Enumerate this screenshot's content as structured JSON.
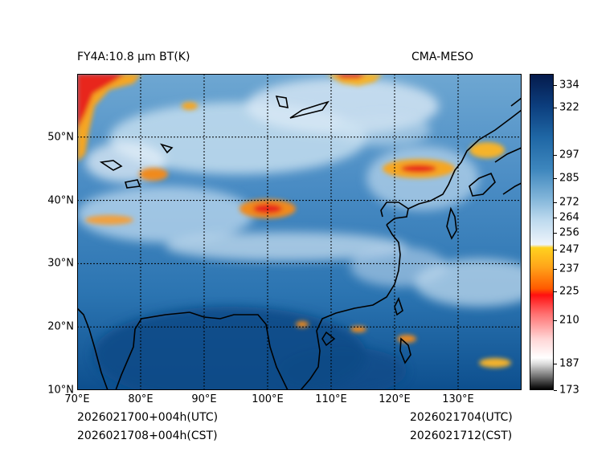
{
  "header": {
    "title_left": "FY4A:10.8 µm BT(K)",
    "title_right": "CMA-MESO"
  },
  "footer": {
    "init_utc": "2026021700+004h(UTC)",
    "init_cst": "2026021708+004h(CST)",
    "valid_utc": "2026021704(UTC)",
    "valid_cst": "2026021712(CST)"
  },
  "map": {
    "lon_min": 70,
    "lon_max": 140,
    "lat_min": 10,
    "lat_max": 60,
    "lon_ticks": [
      70,
      80,
      90,
      100,
      110,
      120,
      130
    ],
    "lon_tick_labels": [
      "70°E",
      "80°E",
      "90°E",
      "100°E",
      "110°E",
      "120°E",
      "130°E"
    ],
    "lat_ticks": [
      10,
      20,
      30,
      40,
      50
    ],
    "lat_tick_labels": [
      "10°N",
      "20°N",
      "30°N",
      "40°N",
      "50°N"
    ]
  },
  "colorbar": {
    "min": 173,
    "max": 340,
    "ticks": [
      173,
      187,
      210,
      225,
      237,
      247,
      256,
      264,
      272,
      285,
      297,
      322,
      334
    ],
    "tick_labels": [
      "173",
      "187",
      "210",
      "225",
      "237",
      "247",
      "256",
      "264",
      "272",
      "285",
      "297",
      "322",
      "334"
    ]
  },
  "colors": {
    "deep_ocean": "#0d4f8e",
    "mid_blue": "#2f79b5",
    "light_blue": "#a7cde6",
    "cloud_white": "#e8f1f8",
    "cold_orange": "#f08a1c",
    "cold_red": "#e8261a",
    "coast": "#000000",
    "grid": "#000000"
  }
}
